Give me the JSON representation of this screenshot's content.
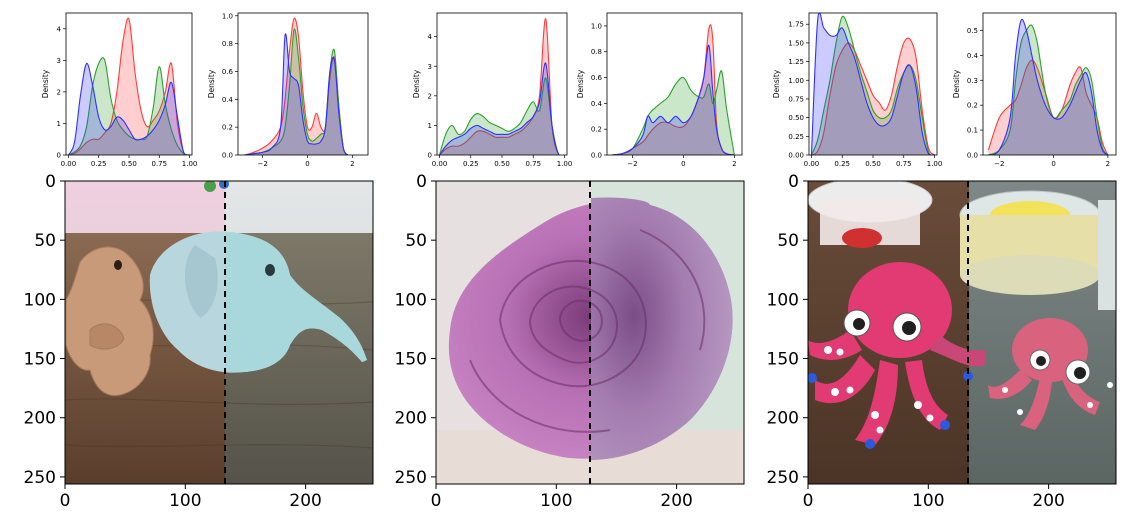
{
  "figure": {
    "density_ylabel": "Density",
    "colors": {
      "red": "#ff3b3b",
      "green": "#2ca02c",
      "blue": "#3030ff",
      "dash": "#000000"
    }
  },
  "chart_data": [
    {
      "type": "area",
      "subplot": "1a",
      "ylabel": "Density",
      "xlim": [
        -0.02,
        1.02
      ],
      "ylim": [
        0,
        4.5
      ],
      "xticks": [
        "0.00",
        "0.25",
        "0.50",
        "0.75",
        "1.00"
      ],
      "xtick_values": [
        0,
        0.25,
        0.5,
        0.75,
        1.0
      ],
      "yticks": [
        "0",
        "1",
        "2",
        "3",
        "4"
      ],
      "ytick_values": [
        0,
        1,
        2,
        3,
        4
      ],
      "x": [
        0.0,
        0.05,
        0.1,
        0.15,
        0.2,
        0.25,
        0.3,
        0.35,
        0.4,
        0.45,
        0.5,
        0.55,
        0.6,
        0.65,
        0.7,
        0.75,
        0.8,
        0.85,
        0.9,
        0.95,
        1.0
      ],
      "series": [
        {
          "color": "red",
          "values": [
            0,
            0.05,
            0.2,
            0.4,
            0.5,
            0.5,
            0.7,
            1.0,
            2.0,
            3.6,
            4.3,
            2.6,
            1.4,
            0.9,
            1.1,
            1.4,
            2.0,
            2.9,
            1.0,
            0.1,
            0
          ]
        },
        {
          "color": "green",
          "values": [
            0,
            0.1,
            0.3,
            0.9,
            2.2,
            2.9,
            3.0,
            1.8,
            1.1,
            0.8,
            0.6,
            0.5,
            0.5,
            0.6,
            1.5,
            2.8,
            1.6,
            0.8,
            0.3,
            0.05,
            0
          ]
        },
        {
          "color": "blue",
          "values": [
            0,
            0.4,
            1.9,
            2.9,
            2.2,
            1.2,
            0.8,
            0.9,
            1.2,
            1.1,
            0.8,
            0.5,
            0.5,
            0.6,
            0.8,
            1.1,
            1.6,
            2.3,
            1.2,
            0.1,
            0
          ]
        }
      ]
    },
    {
      "type": "area",
      "subplot": "1b",
      "ylabel": "Density",
      "xlim": [
        -3.1,
        2.7
      ],
      "ylim": [
        0,
        1.02
      ],
      "xticks": [
        "−2",
        "0",
        "2"
      ],
      "xtick_values": [
        -2,
        0,
        2
      ],
      "yticks": [
        "0.0",
        "0.2",
        "0.4",
        "0.6",
        "0.8",
        "1.0"
      ],
      "ytick_values": [
        0,
        0.2,
        0.4,
        0.6,
        0.8,
        1.0
      ],
      "x": [
        -2.8,
        -2.4,
        -2.0,
        -1.6,
        -1.2,
        -1.0,
        -0.8,
        -0.6,
        -0.4,
        -0.2,
        0.0,
        0.2,
        0.4,
        0.6,
        0.8,
        1.0,
        1.2,
        1.4,
        1.6,
        1.8
      ],
      "series": [
        {
          "color": "red",
          "values": [
            0,
            0.02,
            0.05,
            0.1,
            0.2,
            0.4,
            0.75,
            0.98,
            0.85,
            0.45,
            0.2,
            0.2,
            0.3,
            0.2,
            0.2,
            0.55,
            0.7,
            0.35,
            0.05,
            0
          ]
        },
        {
          "color": "green",
          "values": [
            0,
            0.01,
            0.02,
            0.05,
            0.1,
            0.2,
            0.5,
            0.9,
            0.7,
            0.35,
            0.15,
            0.1,
            0.12,
            0.15,
            0.2,
            0.6,
            0.75,
            0.35,
            0.05,
            0
          ]
        },
        {
          "color": "blue",
          "values": [
            0,
            0.01,
            0.02,
            0.05,
            0.2,
            0.86,
            0.6,
            0.55,
            0.5,
            0.25,
            0.1,
            0.08,
            0.08,
            0.1,
            0.2,
            0.6,
            0.68,
            0.3,
            0.05,
            0
          ]
        }
      ]
    },
    {
      "type": "area",
      "subplot": "2a",
      "ylabel": "Density",
      "xlim": [
        -0.02,
        1.02
      ],
      "ylim": [
        0,
        4.8
      ],
      "xticks": [
        "0.00",
        "0.25",
        "0.50",
        "0.75",
        "1.00"
      ],
      "xtick_values": [
        0,
        0.25,
        0.5,
        0.75,
        1.0
      ],
      "yticks": [
        "0",
        "1",
        "2",
        "3",
        "4"
      ],
      "ytick_values": [
        0,
        1,
        2,
        3,
        4
      ],
      "x": [
        0.0,
        0.05,
        0.1,
        0.15,
        0.2,
        0.25,
        0.3,
        0.35,
        0.4,
        0.45,
        0.5,
        0.55,
        0.6,
        0.65,
        0.7,
        0.75,
        0.8,
        0.85,
        0.9,
        0.95,
        1.0
      ],
      "series": [
        {
          "color": "red",
          "values": [
            0,
            0.2,
            0.3,
            0.3,
            0.4,
            0.6,
            0.8,
            0.8,
            0.7,
            0.6,
            0.6,
            0.6,
            0.7,
            0.8,
            1.0,
            1.3,
            2.0,
            4.6,
            1.0,
            0.05,
            0
          ]
        },
        {
          "color": "green",
          "values": [
            0,
            0.7,
            1.0,
            0.7,
            0.8,
            1.2,
            1.4,
            1.3,
            1.1,
            1.0,
            0.9,
            0.8,
            0.9,
            1.1,
            1.5,
            1.8,
            1.5,
            2.6,
            1.0,
            0.05,
            0
          ]
        },
        {
          "color": "blue",
          "values": [
            0,
            0.3,
            0.5,
            0.6,
            0.7,
            0.9,
            1.0,
            0.9,
            0.8,
            0.7,
            0.7,
            0.7,
            0.8,
            0.9,
            1.1,
            1.3,
            1.8,
            3.1,
            1.0,
            0.05,
            0
          ]
        }
      ]
    },
    {
      "type": "area",
      "subplot": "2b",
      "ylabel": "Density",
      "xlim": [
        -3.0,
        2.3
      ],
      "ylim": [
        0,
        1.1
      ],
      "xticks": [
        "−2",
        "0",
        "2"
      ],
      "xtick_values": [
        -2,
        0,
        2
      ],
      "yticks": [
        "0.0",
        "0.2",
        "0.4",
        "0.6",
        "0.8",
        "1.0"
      ],
      "ytick_values": [
        0,
        0.2,
        0.4,
        0.6,
        0.8,
        1.0
      ],
      "x": [
        -2.8,
        -2.4,
        -2.0,
        -1.6,
        -1.4,
        -1.2,
        -0.9,
        -0.6,
        -0.3,
        0.0,
        0.3,
        0.6,
        0.8,
        1.0,
        1.15,
        1.3,
        1.5,
        1.7,
        2.0
      ],
      "series": [
        {
          "color": "red",
          "values": [
            0,
            0.01,
            0.05,
            0.1,
            0.15,
            0.2,
            0.25,
            0.25,
            0.22,
            0.22,
            0.3,
            0.45,
            0.6,
            0.98,
            0.9,
            0.25,
            0.05,
            0.01,
            0
          ]
        },
        {
          "color": "green",
          "values": [
            0,
            0.01,
            0.05,
            0.2,
            0.3,
            0.35,
            0.4,
            0.45,
            0.55,
            0.6,
            0.5,
            0.45,
            0.45,
            0.55,
            0.4,
            0.5,
            0.65,
            0.35,
            0
          ]
        },
        {
          "color": "blue",
          "values": [
            0,
            0.01,
            0.05,
            0.15,
            0.3,
            0.25,
            0.3,
            0.25,
            0.3,
            0.25,
            0.3,
            0.45,
            0.6,
            0.85,
            0.5,
            0.2,
            0.05,
            0.01,
            0
          ]
        }
      ]
    },
    {
      "type": "area",
      "subplot": "3a",
      "ylabel": "Density",
      "xlim": [
        -0.02,
        1.02
      ],
      "ylim": [
        0,
        1.9
      ],
      "xticks": [
        "0.00",
        "0.25",
        "0.50",
        "0.75",
        "1.00"
      ],
      "xtick_values": [
        0,
        0.25,
        0.5,
        0.75,
        1.0
      ],
      "yticks": [
        "0.00",
        "0.25",
        "0.50",
        "0.75",
        "1.00",
        "1.25",
        "1.50",
        "1.75"
      ],
      "ytick_values": [
        0,
        0.25,
        0.5,
        0.75,
        1.0,
        1.25,
        1.5,
        1.75
      ],
      "x": [
        0.0,
        0.05,
        0.1,
        0.15,
        0.2,
        0.25,
        0.3,
        0.35,
        0.4,
        0.45,
        0.5,
        0.55,
        0.6,
        0.65,
        0.7,
        0.75,
        0.8,
        0.85,
        0.9,
        0.95,
        1.0
      ],
      "series": [
        {
          "color": "red",
          "values": [
            0,
            0.05,
            0.3,
            0.8,
            1.2,
            1.4,
            1.5,
            1.4,
            1.2,
            1.0,
            0.8,
            0.7,
            0.6,
            0.8,
            1.2,
            1.5,
            1.55,
            1.3,
            0.6,
            0.1,
            0
          ]
        },
        {
          "color": "green",
          "values": [
            0,
            0.2,
            0.6,
            1.0,
            1.5,
            1.85,
            1.7,
            1.4,
            1.1,
            0.85,
            0.6,
            0.5,
            0.5,
            0.6,
            0.9,
            1.1,
            1.2,
            1.0,
            0.5,
            0.05,
            0
          ]
        },
        {
          "color": "blue",
          "values": [
            0,
            1.8,
            1.7,
            1.6,
            1.6,
            1.7,
            1.5,
            1.3,
            1.0,
            0.7,
            0.5,
            0.4,
            0.4,
            0.5,
            0.8,
            1.1,
            1.2,
            0.9,
            0.3,
            0.02,
            0
          ]
        }
      ]
    },
    {
      "type": "area",
      "subplot": "3b",
      "ylabel": "Density",
      "xlim": [
        -2.6,
        2.3
      ],
      "ylim": [
        0,
        0.57
      ],
      "xticks": [
        "−2",
        "0",
        "2"
      ],
      "xtick_values": [
        -2,
        0,
        2
      ],
      "yticks": [
        "0.0",
        "0.1",
        "0.2",
        "0.3",
        "0.4",
        "0.5"
      ],
      "ytick_values": [
        0,
        0.1,
        0.2,
        0.3,
        0.4,
        0.5
      ],
      "x": [
        -2.4,
        -2.0,
        -1.6,
        -1.4,
        -1.2,
        -1.0,
        -0.8,
        -0.6,
        -0.3,
        0.0,
        0.3,
        0.6,
        0.8,
        1.0,
        1.2,
        1.4,
        1.6,
        1.8,
        2.0
      ],
      "series": [
        {
          "color": "red",
          "values": [
            0.02,
            0.15,
            0.2,
            0.22,
            0.28,
            0.35,
            0.38,
            0.35,
            0.25,
            0.15,
            0.18,
            0.28,
            0.33,
            0.35,
            0.25,
            0.2,
            0.15,
            0.05,
            0
          ]
        },
        {
          "color": "green",
          "values": [
            0,
            0.02,
            0.1,
            0.3,
            0.45,
            0.5,
            0.52,
            0.45,
            0.25,
            0.15,
            0.18,
            0.22,
            0.28,
            0.32,
            0.35,
            0.3,
            0.15,
            0.03,
            0
          ]
        },
        {
          "color": "blue",
          "values": [
            0,
            0.02,
            0.15,
            0.4,
            0.54,
            0.5,
            0.4,
            0.3,
            0.2,
            0.15,
            0.15,
            0.2,
            0.25,
            0.3,
            0.33,
            0.25,
            0.1,
            0.02,
            0
          ]
        }
      ]
    }
  ],
  "images": [
    {
      "scene": "elephant",
      "xlim": [
        0,
        256
      ],
      "ylim": [
        256,
        0
      ],
      "split_x": 133,
      "xticks": [
        "0",
        "100",
        "200"
      ],
      "xtick_values": [
        0,
        100,
        200
      ],
      "yticks": [
        "0",
        "50",
        "100",
        "150",
        "200",
        "250"
      ],
      "ytick_values": [
        0,
        50,
        100,
        150,
        200,
        250
      ]
    },
    {
      "scene": "rose",
      "xlim": [
        0,
        256
      ],
      "ylim": [
        256,
        0
      ],
      "split_x": 128,
      "xticks": [
        "0",
        "100",
        "200"
      ],
      "xtick_values": [
        0,
        100,
        200
      ],
      "yticks": [
        "0",
        "50",
        "100",
        "150",
        "200",
        "250"
      ],
      "ytick_values": [
        0,
        50,
        100,
        150,
        200,
        250
      ]
    },
    {
      "scene": "octopus",
      "xlim": [
        0,
        256
      ],
      "ylim": [
        256,
        0
      ],
      "split_x": 133,
      "xticks": [
        "0",
        "100",
        "200"
      ],
      "xtick_values": [
        0,
        100,
        200
      ],
      "yticks": [
        "0",
        "50",
        "100",
        "150",
        "200",
        "250"
      ],
      "ytick_values": [
        0,
        50,
        100,
        150,
        200,
        250
      ]
    }
  ]
}
